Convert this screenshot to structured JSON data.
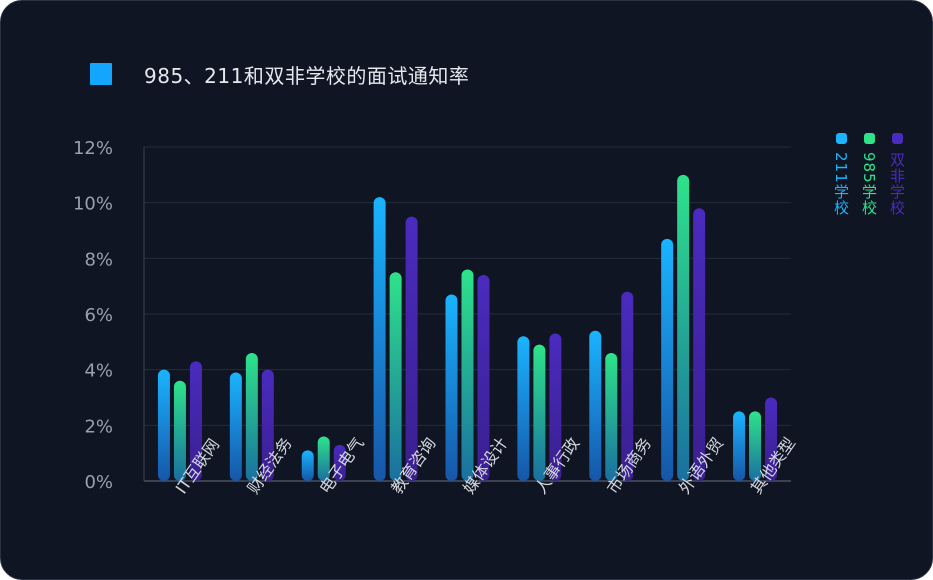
{
  "chart_data": {
    "type": "bar",
    "title": "985、211和双非学校的面试通知率",
    "title_swatch_color": "#14a6ff",
    "categories": [
      "IT互联网",
      "财经法务",
      "电子电气",
      "教育咨询",
      "媒体设计",
      "人事行政",
      "市场商务",
      "外语外贸",
      "其他类型"
    ],
    "series": [
      {
        "name": "211学校",
        "values": [
          4.0,
          3.9,
          1.1,
          10.2,
          6.7,
          5.2,
          5.4,
          8.7,
          2.5
        ],
        "color_top": "#1ab4ff",
        "color_bottom": "#1656a8"
      },
      {
        "name": "985学校",
        "values": [
          3.6,
          4.6,
          1.6,
          7.5,
          7.6,
          4.9,
          4.6,
          11.0,
          2.5
        ],
        "color_top": "#2ee38a",
        "color_bottom": "#1a6fa0"
      },
      {
        "name": "双非学校",
        "values": [
          4.3,
          4.0,
          1.3,
          9.5,
          7.4,
          5.3,
          6.8,
          9.8,
          3.0
        ],
        "color_top": "#4a2bbf",
        "color_bottom": "#3a1f8f"
      }
    ],
    "ylim": [
      0,
      12
    ],
    "yticks": [
      "0%",
      "2%",
      "4%",
      "6%",
      "8%",
      "10%",
      "12%"
    ],
    "grid": true,
    "legend_position": "right"
  }
}
